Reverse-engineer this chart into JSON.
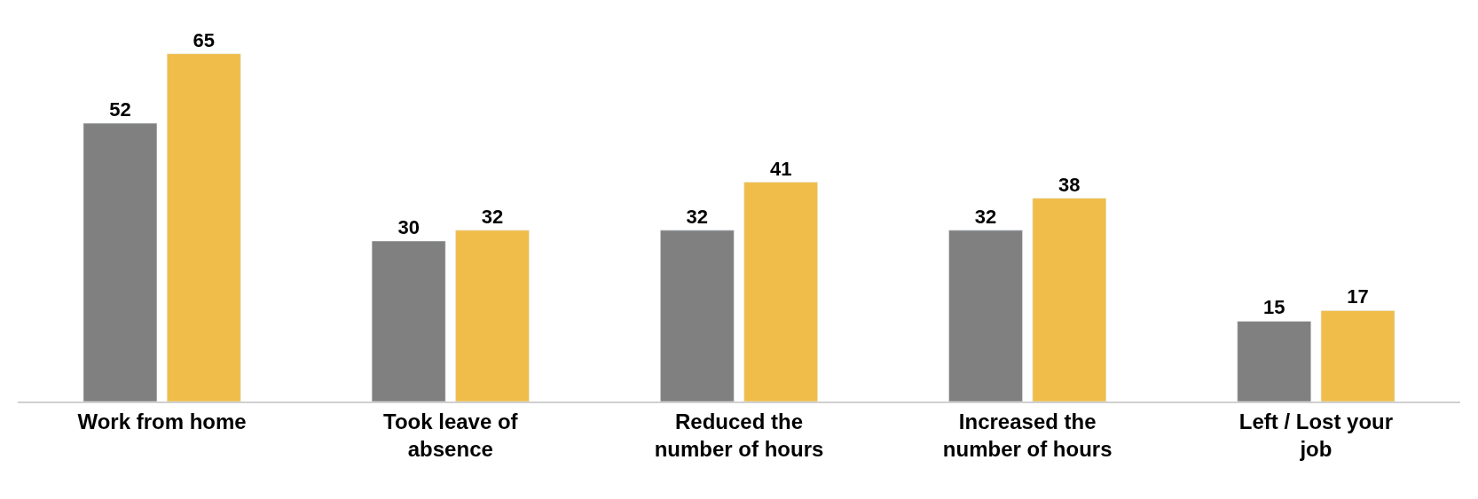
{
  "chart_data": {
    "type": "bar",
    "categories": [
      "Work from home",
      "Took leave of absence",
      "Reduced the number of hours",
      "Increased the number of hours",
      "Left / Lost your job"
    ],
    "series": [
      {
        "color": "#808080",
        "values": [
          52,
          30,
          32,
          32,
          15
        ]
      },
      {
        "color": "#f0bd4a",
        "values": [
          65,
          32,
          41,
          38,
          17
        ]
      }
    ],
    "data_labels": true,
    "legend": false
  }
}
